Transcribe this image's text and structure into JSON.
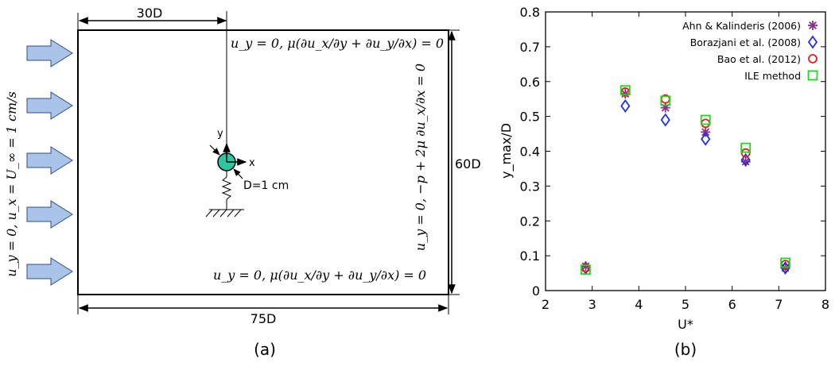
{
  "panel_a": {
    "caption": "(a)",
    "dim_top": "30D",
    "dim_bottom": "75D",
    "dim_right": "60D",
    "bc_top": "u_y = 0, μ(∂u_x/∂y + ∂u_y/∂x) = 0",
    "bc_bottom": "u_y = 0, μ(∂u_x/∂y + ∂u_y/∂x) = 0",
    "bc_left": "u_y = 0, u_x = U_∞ = 1 cm/s",
    "bc_right": "u_y = 0, −p + 2μ ∂u_x/∂x = 0",
    "axis_x": "x",
    "axis_y": "y",
    "cylinder_label": "D=1 cm",
    "colors": {
      "arrow_fill": "#a9c4e8",
      "arrow_stroke": "#2f4f7f",
      "cylinder_fill": "#2bc5a0"
    }
  },
  "panel_b": {
    "caption": "(b)",
    "colors": {
      "ahn": "#8a2f8a",
      "borazjani": "#1f2fdc",
      "bao": "#e0201a",
      "ile": "#1ed81e"
    }
  },
  "chart_data": {
    "type": "scatter",
    "xlabel": "U*",
    "ylabel": "y_max/D",
    "xlim": [
      2,
      8
    ],
    "ylim": [
      0,
      0.8
    ],
    "xticks": [
      "2",
      "3",
      "4",
      "5",
      "6",
      "7",
      "8"
    ],
    "yticks": [
      "0",
      "0.1",
      "0.2",
      "0.3",
      "0.4",
      "0.5",
      "0.6",
      "0.7",
      "0.8"
    ],
    "legend_position": "top-right",
    "series": [
      {
        "name": "Ahn & Kalinderis (2006)",
        "marker": "asterisk",
        "x": [
          2.86,
          3.71,
          4.57,
          5.43,
          6.29,
          7.14
        ],
        "y": [
          0.07,
          0.565,
          0.525,
          0.455,
          0.37,
          0.065
        ]
      },
      {
        "name": "Borazjani et al. (2008)",
        "marker": "diamond",
        "x": [
          2.86,
          3.71,
          4.57,
          5.43,
          6.29,
          7.14
        ],
        "y": [
          0.065,
          0.53,
          0.49,
          0.435,
          0.375,
          0.065
        ]
      },
      {
        "name": "Bao et al. (2012)",
        "marker": "circle",
        "x": [
          2.86,
          3.71,
          4.57,
          5.43,
          6.29,
          7.14
        ],
        "y": [
          0.065,
          0.57,
          0.55,
          0.48,
          0.395,
          0.075
        ]
      },
      {
        "name": "ILE method",
        "marker": "square",
        "x": [
          2.86,
          3.71,
          4.57,
          5.43,
          6.29,
          7.14
        ],
        "y": [
          0.06,
          0.575,
          0.545,
          0.49,
          0.41,
          0.08
        ]
      }
    ]
  }
}
